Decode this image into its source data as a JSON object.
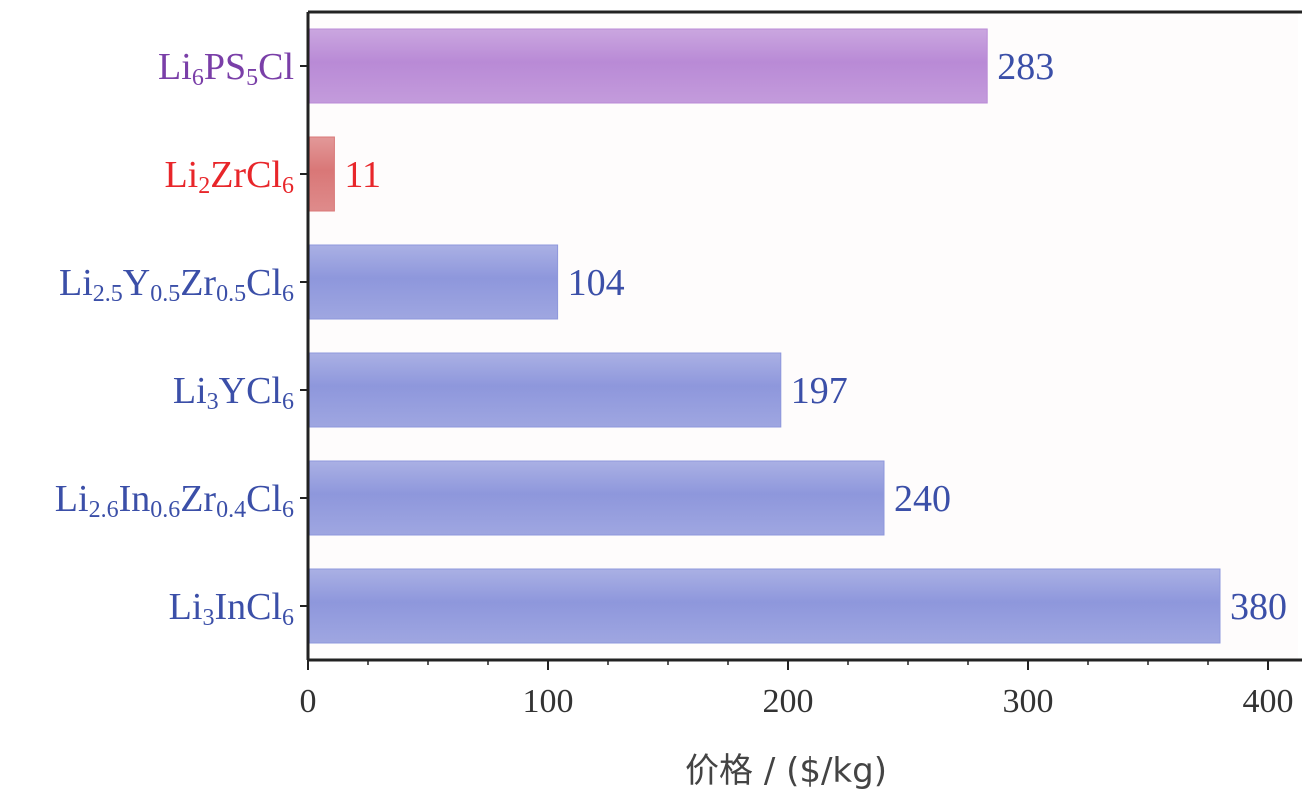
{
  "chart_data": {
    "type": "bar",
    "orientation": "horizontal",
    "categories": [
      {
        "id": "li6ps5cl",
        "parts": [
          [
            "Li",
            ""
          ],
          [
            "6",
            "sub"
          ],
          [
            "PS",
            ""
          ],
          [
            "5",
            "sub"
          ],
          [
            "Cl",
            ""
          ]
        ],
        "color": "#7a3fa8"
      },
      {
        "id": "li2zrcl6",
        "parts": [
          [
            "Li",
            ""
          ],
          [
            "2",
            "sub"
          ],
          [
            "ZrCl",
            ""
          ],
          [
            "6",
            "sub"
          ]
        ],
        "color": "#e8262a"
      },
      {
        "id": "li2.5y0.5zr0.5cl6",
        "parts": [
          [
            "Li",
            ""
          ],
          [
            "2.5",
            "sub"
          ],
          [
            "Y",
            ""
          ],
          [
            "0.5",
            "sub"
          ],
          [
            "Zr",
            ""
          ],
          [
            "0.5",
            "sub"
          ],
          [
            "Cl",
            ""
          ],
          [
            "6",
            "sub"
          ]
        ],
        "color": "#3b4fa8"
      },
      {
        "id": "li3ycl6",
        "parts": [
          [
            "Li",
            ""
          ],
          [
            "3",
            "sub"
          ],
          [
            "YCl",
            ""
          ],
          [
            "6",
            "sub"
          ]
        ],
        "color": "#3b4fa8"
      },
      {
        "id": "li2.6in0.6zr0.4cl6",
        "parts": [
          [
            "Li",
            ""
          ],
          [
            "2.6",
            "sub"
          ],
          [
            "In",
            ""
          ],
          [
            "0.6",
            "sub"
          ],
          [
            "Zr",
            ""
          ],
          [
            "0.4",
            "sub"
          ],
          [
            "Cl",
            ""
          ],
          [
            "6",
            "sub"
          ]
        ],
        "color": "#3b4fa8"
      },
      {
        "id": "li3incl6",
        "parts": [
          [
            "Li",
            ""
          ],
          [
            "3",
            "sub"
          ],
          [
            "InCl",
            ""
          ],
          [
            "6",
            "sub"
          ]
        ],
        "color": "#3b4fa8"
      }
    ],
    "values": [
      283,
      11,
      104,
      197,
      240,
      380
    ],
    "value_labels": [
      "283",
      "11",
      "104",
      "197",
      "240",
      "380"
    ],
    "bar_colors": [
      "#b98ad6",
      "#d97777",
      "#8e97dc",
      "#8e97dc",
      "#8e97dc",
      "#8e97dc"
    ],
    "value_label_colors": [
      "#3b4fa8",
      "#e8262a",
      "#3b4fa8",
      "#3b4fa8",
      "#3b4fa8",
      "#3b4fa8"
    ],
    "xlim": [
      0,
      400
    ],
    "xticks": [
      0,
      100,
      200,
      300,
      400
    ],
    "xlabel": "价格 / ($/kg)",
    "ylabel": "",
    "title": "",
    "grid": false,
    "legend": "none"
  }
}
